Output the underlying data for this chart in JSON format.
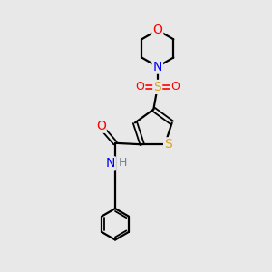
{
  "bg_color": "#e8e8e8",
  "atom_colors": {
    "C": "#000000",
    "H": "#708090",
    "N": "#0000FF",
    "O": "#FF0000",
    "S_thio": "#DAA520",
    "S_sul": "#DAA520"
  },
  "fig_size": [
    3.0,
    3.0
  ],
  "dpi": 100,
  "lw": 1.6,
  "lw2": 1.3,
  "fontsize": 9.5
}
